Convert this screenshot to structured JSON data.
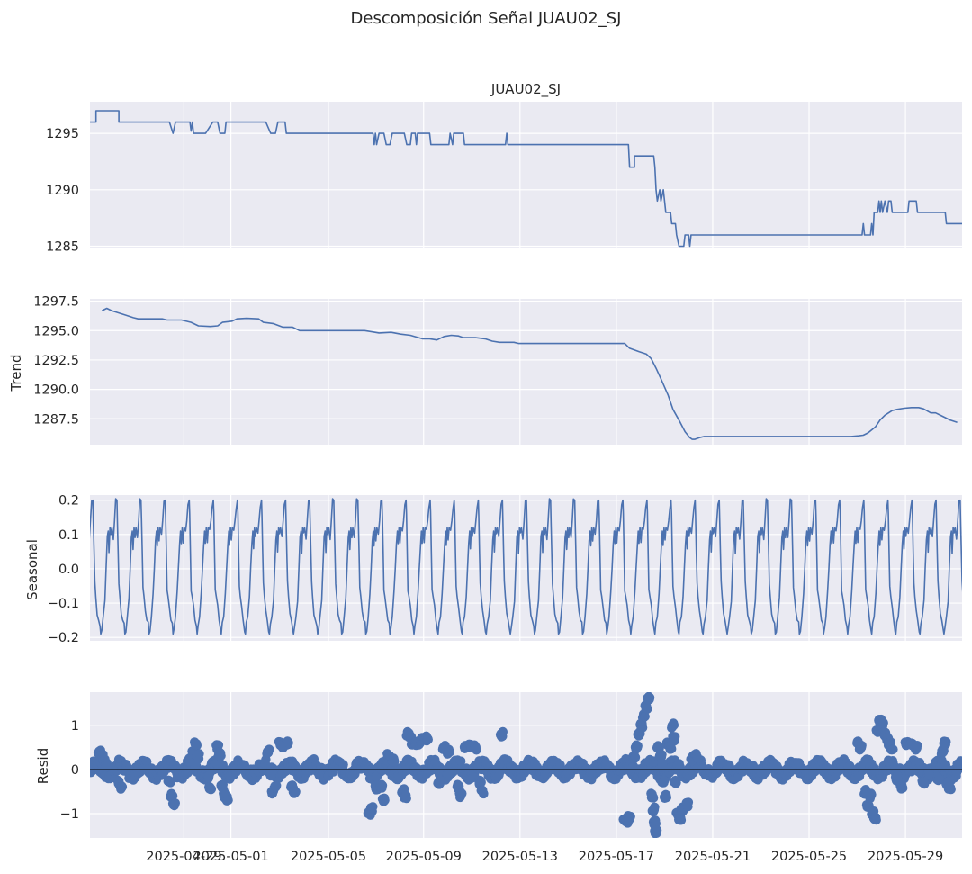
{
  "figure": {
    "suptitle": "Descomposición Señal JUAU02_SJ",
    "panel_title": "JUAU02_SJ",
    "x_tick_labels": [
      "2025-04-29",
      "2025-05-01",
      "2025-05-05",
      "2025-05-09",
      "2025-05-13",
      "2025-05-17",
      "2025-05-21",
      "2025-05-25",
      "2025-05-29"
    ]
  },
  "colors": {
    "axes_bg": "#eaeaf2",
    "grid": "#ffffff",
    "line": "#4c72b0",
    "text": "#262626",
    "zero_line": "#000000"
  },
  "chart_data": [
    {
      "type": "line",
      "name": "observed",
      "title": "JUAU02_SJ",
      "ylabel": "",
      "ylim": [
        1284.8,
        1297.8
      ],
      "yticks": [
        1285,
        1290,
        1295
      ],
      "ytick_labels": [
        "1285",
        "1290",
        "1295"
      ],
      "x_day_range": [
        0,
        36.2
      ],
      "xticks_day": [
        3.9,
        5.85,
        9.9,
        13.85,
        17.85,
        21.85,
        25.85,
        29.85,
        33.85
      ],
      "points": [
        [
          0,
          1296
        ],
        [
          0.25,
          1296
        ],
        [
          0.25,
          1297
        ],
        [
          1.2,
          1297
        ],
        [
          1.2,
          1296
        ],
        [
          3.3,
          1296
        ],
        [
          3.45,
          1295
        ],
        [
          3.55,
          1296
        ],
        [
          4.15,
          1296
        ],
        [
          4.2,
          1295.2
        ],
        [
          4.25,
          1296
        ],
        [
          4.3,
          1295
        ],
        [
          4.8,
          1295
        ],
        [
          5.1,
          1296
        ],
        [
          5.3,
          1296
        ],
        [
          5.4,
          1295
        ],
        [
          5.6,
          1295
        ],
        [
          5.65,
          1296
        ],
        [
          7.3,
          1296
        ],
        [
          7.5,
          1295
        ],
        [
          7.7,
          1295
        ],
        [
          7.8,
          1296
        ],
        [
          8.1,
          1296
        ],
        [
          8.15,
          1295
        ],
        [
          11.75,
          1295
        ],
        [
          11.8,
          1294
        ],
        [
          11.85,
          1295
        ],
        [
          11.9,
          1294
        ],
        [
          12,
          1295
        ],
        [
          12.2,
          1295
        ],
        [
          12.3,
          1294
        ],
        [
          12.45,
          1294
        ],
        [
          12.55,
          1295
        ],
        [
          13.05,
          1295
        ],
        [
          13.15,
          1294
        ],
        [
          13.3,
          1294
        ],
        [
          13.35,
          1295
        ],
        [
          13.5,
          1295
        ],
        [
          13.55,
          1294
        ],
        [
          13.6,
          1295
        ],
        [
          14.1,
          1295
        ],
        [
          14.15,
          1294
        ],
        [
          14.9,
          1294
        ],
        [
          14.95,
          1295
        ],
        [
          15.05,
          1294
        ],
        [
          15.1,
          1295
        ],
        [
          15.5,
          1295
        ],
        [
          15.55,
          1294
        ],
        [
          17.25,
          1294
        ],
        [
          17.3,
          1295
        ],
        [
          17.35,
          1294
        ],
        [
          22.35,
          1294
        ],
        [
          22.4,
          1292
        ],
        [
          22.6,
          1292
        ],
        [
          22.6,
          1293
        ],
        [
          23.4,
          1293
        ],
        [
          23.45,
          1292
        ],
        [
          23.5,
          1290
        ],
        [
          23.55,
          1289
        ],
        [
          23.65,
          1290
        ],
        [
          23.7,
          1289
        ],
        [
          23.8,
          1290
        ],
        [
          23.9,
          1288
        ],
        [
          24.1,
          1288
        ],
        [
          24.15,
          1287
        ],
        [
          24.3,
          1287
        ],
        [
          24.35,
          1286
        ],
        [
          24.45,
          1285
        ],
        [
          24.65,
          1285
        ],
        [
          24.7,
          1286
        ],
        [
          24.85,
          1286
        ],
        [
          24.9,
          1285
        ],
        [
          24.95,
          1286
        ],
        [
          32.05,
          1286
        ],
        [
          32.1,
          1287
        ],
        [
          32.15,
          1286
        ],
        [
          32.4,
          1286
        ],
        [
          32.45,
          1287
        ],
        [
          32.5,
          1286
        ],
        [
          32.55,
          1288
        ],
        [
          32.7,
          1288
        ],
        [
          32.75,
          1289
        ],
        [
          32.8,
          1288
        ],
        [
          32.85,
          1289
        ],
        [
          32.9,
          1288
        ],
        [
          33.0,
          1289
        ],
        [
          33.1,
          1288
        ],
        [
          33.15,
          1289
        ],
        [
          33.25,
          1289
        ],
        [
          33.3,
          1288
        ],
        [
          33.95,
          1288
        ],
        [
          34.0,
          1289
        ],
        [
          34.3,
          1289
        ],
        [
          34.35,
          1288
        ],
        [
          35.5,
          1288
        ],
        [
          35.55,
          1287
        ],
        [
          36.2,
          1287
        ]
      ]
    },
    {
      "type": "line",
      "name": "trend",
      "ylabel": "Trend",
      "ylim": [
        1285.3,
        1297.7
      ],
      "yticks": [
        1287.5,
        1290.0,
        1292.5,
        1295.0,
        1297.5
      ],
      "ytick_labels": [
        "1287.5",
        "1290.0",
        "1292.5",
        "1295.0",
        "1297.5"
      ],
      "x_day_range": [
        0,
        36.2
      ],
      "points": [
        [
          0.5,
          1296.7
        ],
        [
          0.7,
          1296.9
        ],
        [
          0.9,
          1296.7
        ],
        [
          1.5,
          1296.3
        ],
        [
          1.8,
          1296.1
        ],
        [
          2.0,
          1296.0
        ],
        [
          2.8,
          1296.0
        ],
        [
          3.0,
          1296.0
        ],
        [
          3.2,
          1295.9
        ],
        [
          3.8,
          1295.9
        ],
        [
          4.2,
          1295.7
        ],
        [
          4.5,
          1295.4
        ],
        [
          5.0,
          1295.35
        ],
        [
          5.3,
          1295.4
        ],
        [
          5.5,
          1295.7
        ],
        [
          5.9,
          1295.8
        ],
        [
          6.1,
          1296.0
        ],
        [
          6.5,
          1296.05
        ],
        [
          7.0,
          1296.0
        ],
        [
          7.2,
          1295.7
        ],
        [
          7.6,
          1295.6
        ],
        [
          8.0,
          1295.3
        ],
        [
          8.4,
          1295.3
        ],
        [
          8.7,
          1295.0
        ],
        [
          11.4,
          1295.0
        ],
        [
          11.7,
          1294.9
        ],
        [
          12.0,
          1294.8
        ],
        [
          12.5,
          1294.85
        ],
        [
          12.9,
          1294.7
        ],
        [
          13.3,
          1294.6
        ],
        [
          13.8,
          1294.3
        ],
        [
          14.1,
          1294.3
        ],
        [
          14.4,
          1294.2
        ],
        [
          14.7,
          1294.5
        ],
        [
          15.0,
          1294.6
        ],
        [
          15.3,
          1294.55
        ],
        [
          15.5,
          1294.4
        ],
        [
          16.0,
          1294.4
        ],
        [
          16.4,
          1294.3
        ],
        [
          16.7,
          1294.1
        ],
        [
          17.0,
          1294.0
        ],
        [
          17.6,
          1294.0
        ],
        [
          17.8,
          1293.9
        ],
        [
          18.2,
          1293.9
        ],
        [
          22.2,
          1293.9
        ],
        [
          22.4,
          1293.5
        ],
        [
          22.8,
          1293.2
        ],
        [
          23.1,
          1293.0
        ],
        [
          23.3,
          1292.6
        ],
        [
          23.5,
          1291.8
        ],
        [
          23.7,
          1290.9
        ],
        [
          24.0,
          1289.5
        ],
        [
          24.2,
          1288.3
        ],
        [
          24.5,
          1287.2
        ],
        [
          24.7,
          1286.4
        ],
        [
          24.9,
          1285.9
        ],
        [
          25.0,
          1285.75
        ],
        [
          25.1,
          1285.75
        ],
        [
          25.3,
          1285.9
        ],
        [
          25.5,
          1286.0
        ],
        [
          26.0,
          1286.0
        ],
        [
          31.6,
          1286.0
        ],
        [
          31.9,
          1286.05
        ],
        [
          32.1,
          1286.1
        ],
        [
          32.3,
          1286.3
        ],
        [
          32.6,
          1286.8
        ],
        [
          32.8,
          1287.4
        ],
        [
          33.0,
          1287.8
        ],
        [
          33.3,
          1288.2
        ],
        [
          33.5,
          1288.3
        ],
        [
          33.8,
          1288.4
        ],
        [
          34.1,
          1288.45
        ],
        [
          34.4,
          1288.45
        ],
        [
          34.6,
          1288.35
        ],
        [
          34.9,
          1288.0
        ],
        [
          35.1,
          1288.0
        ],
        [
          35.4,
          1287.7
        ],
        [
          35.7,
          1287.4
        ],
        [
          36.0,
          1287.2
        ]
      ]
    },
    {
      "type": "line",
      "name": "seasonal",
      "ylabel": "Seasonal",
      "ylim": [
        -0.21,
        0.215
      ],
      "yticks": [
        -0.2,
        -0.1,
        0.0,
        0.1,
        0.2
      ],
      "ytick_labels": [
        "−0.2",
        "−0.1",
        "0.0",
        "0.1",
        "0.2"
      ],
      "x_day_range": [
        0,
        36.2
      ],
      "period_days": 1,
      "first_peak_day": 0.12,
      "one_period_shape": [
        [
          0.0,
          0.2
        ],
        [
          0.02,
          0.15
        ],
        [
          0.05,
          0.05
        ],
        [
          0.08,
          -0.05
        ],
        [
          0.12,
          -0.08
        ],
        [
          0.18,
          -0.12
        ],
        [
          0.24,
          -0.15
        ],
        [
          0.3,
          -0.17
        ],
        [
          0.33,
          -0.19
        ],
        [
          0.37,
          -0.17
        ],
        [
          0.43,
          -0.14
        ],
        [
          0.5,
          -0.08
        ],
        [
          0.55,
          0.0
        ],
        [
          0.6,
          0.08
        ],
        [
          0.64,
          0.11
        ],
        [
          0.67,
          0.06
        ],
        [
          0.71,
          0.12
        ],
        [
          0.75,
          0.09
        ],
        [
          0.79,
          0.12
        ],
        [
          0.85,
          0.1
        ],
        [
          0.9,
          0.14
        ],
        [
          0.95,
          0.19
        ],
        [
          1.0,
          0.2
        ]
      ]
    },
    {
      "type": "scatter",
      "name": "resid",
      "ylabel": "Resid",
      "ylim": [
        -1.55,
        1.75
      ],
      "yticks": [
        -1,
        0,
        1
      ],
      "ytick_labels": [
        "−1",
        "0",
        "1"
      ],
      "zero_line": true,
      "x_day_range": [
        0,
        36.2
      ],
      "baseline_noise_amplitude": 0.25,
      "clusters": [
        [
          0.4,
          0.4
        ],
        [
          0.5,
          0.3
        ],
        [
          0.6,
          0.2
        ],
        [
          0.7,
          0.1
        ],
        [
          1.2,
          -0.3
        ],
        [
          1.3,
          -0.4
        ],
        [
          3.3,
          -0.3
        ],
        [
          3.4,
          -0.6
        ],
        [
          3.5,
          -0.8
        ],
        [
          4.1,
          0.2
        ],
        [
          4.3,
          0.4
        ],
        [
          4.4,
          0.6
        ],
        [
          4.5,
          0.3
        ],
        [
          4.9,
          -0.2
        ],
        [
          5.0,
          -0.4
        ],
        [
          5.2,
          0.2
        ],
        [
          5.3,
          0.5
        ],
        [
          5.4,
          0.35
        ],
        [
          5.5,
          -0.4
        ],
        [
          5.6,
          -0.6
        ],
        [
          5.7,
          -0.65
        ],
        [
          7.4,
          0.4
        ],
        [
          7.5,
          -0.1
        ],
        [
          7.6,
          -0.5
        ],
        [
          7.7,
          -0.4
        ],
        [
          7.9,
          0.6
        ],
        [
          8.0,
          0.55
        ],
        [
          8.2,
          0.6
        ],
        [
          8.4,
          -0.4
        ],
        [
          8.5,
          -0.5
        ],
        [
          11.6,
          -1.0
        ],
        [
          11.7,
          -0.9
        ],
        [
          11.9,
          -0.4
        ],
        [
          12.1,
          -0.4
        ],
        [
          12.2,
          -0.7
        ],
        [
          12.4,
          0.3
        ],
        [
          12.6,
          0.2
        ],
        [
          13.0,
          -0.5
        ],
        [
          13.1,
          -0.6
        ],
        [
          13.2,
          0.8
        ],
        [
          13.3,
          0.75
        ],
        [
          13.4,
          0.6
        ],
        [
          13.5,
          0.6
        ],
        [
          13.7,
          0.6
        ],
        [
          13.8,
          0.7
        ],
        [
          14.0,
          0.7
        ],
        [
          14.5,
          -0.3
        ],
        [
          14.7,
          0.5
        ],
        [
          14.9,
          0.4
        ],
        [
          15.3,
          -0.4
        ],
        [
          15.4,
          -0.6
        ],
        [
          15.6,
          0.5
        ],
        [
          15.8,
          0.55
        ],
        [
          16.0,
          0.5
        ],
        [
          16.2,
          -0.3
        ],
        [
          16.3,
          -0.5
        ],
        [
          17.1,
          0.8
        ],
        [
          22.2,
          -1.1
        ],
        [
          22.3,
          -1.2
        ],
        [
          22.4,
          -1.1
        ],
        [
          22.6,
          0.3
        ],
        [
          22.7,
          0.5
        ],
        [
          22.8,
          0.8
        ],
        [
          22.9,
          1.0
        ],
        [
          23.0,
          1.2
        ],
        [
          23.1,
          1.4
        ],
        [
          23.2,
          1.6
        ],
        [
          23.35,
          -0.6
        ],
        [
          23.4,
          -0.9
        ],
        [
          23.45,
          -1.2
        ],
        [
          23.5,
          -1.4
        ],
        [
          23.6,
          0.5
        ],
        [
          23.7,
          0.3
        ],
        [
          23.75,
          0.1
        ],
        [
          23.8,
          -0.3
        ],
        [
          23.9,
          -0.6
        ],
        [
          24.0,
          0.6
        ],
        [
          24.1,
          0.5
        ],
        [
          24.2,
          1.0
        ],
        [
          24.25,
          0.7
        ],
        [
          24.3,
          -0.3
        ],
        [
          24.4,
          -1.0
        ],
        [
          24.5,
          -1.1
        ],
        [
          24.6,
          -0.9
        ],
        [
          24.8,
          -0.8
        ],
        [
          25.0,
          0.25
        ],
        [
          25.1,
          0.3
        ],
        [
          25.2,
          0.3
        ],
        [
          31.9,
          0.6
        ],
        [
          32.0,
          0.5
        ],
        [
          32.2,
          -0.5
        ],
        [
          32.3,
          -0.8
        ],
        [
          32.4,
          -0.6
        ],
        [
          32.5,
          -1.0
        ],
        [
          32.6,
          -1.1
        ],
        [
          32.7,
          0.9
        ],
        [
          32.8,
          1.1
        ],
        [
          32.9,
          1.0
        ],
        [
          33.0,
          0.8
        ],
        [
          33.1,
          0.7
        ],
        [
          33.2,
          0.6
        ],
        [
          33.3,
          0.5
        ],
        [
          33.5,
          -0.2
        ],
        [
          33.7,
          -0.4
        ],
        [
          33.9,
          0.6
        ],
        [
          34.1,
          0.55
        ],
        [
          34.3,
          0.5
        ],
        [
          34.6,
          -0.3
        ],
        [
          34.8,
          -0.1
        ],
        [
          35.2,
          -0.2
        ],
        [
          35.4,
          0.4
        ],
        [
          35.5,
          0.6
        ],
        [
          35.6,
          -0.3
        ],
        [
          35.7,
          -0.4
        ]
      ]
    }
  ]
}
